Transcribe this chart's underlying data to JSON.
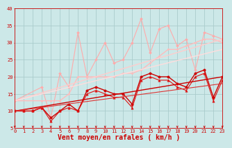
{
  "background_color": "#cce8e8",
  "grid_color": "#aacccc",
  "xlabel": "Vent moyen/en rafales ( km/h )",
  "xlabel_color": "#cc0000",
  "xlabel_fontsize": 7,
  "tick_color": "#cc0000",
  "ylim": [
    5,
    40
  ],
  "xlim": [
    0,
    23
  ],
  "yticks": [
    5,
    10,
    15,
    20,
    25,
    30,
    35,
    40
  ],
  "xticks": [
    0,
    1,
    2,
    3,
    4,
    5,
    6,
    7,
    8,
    9,
    10,
    11,
    12,
    13,
    14,
    15,
    16,
    17,
    18,
    19,
    20,
    21,
    22,
    23
  ],
  "lines": [
    {
      "comment": "light pink jagged line - highest peaks",
      "x": [
        0,
        3,
        4,
        5,
        6,
        7,
        8,
        9,
        10,
        11,
        12,
        13,
        14,
        15,
        16,
        17,
        18,
        19,
        20,
        21,
        22,
        23
      ],
      "y": [
        13,
        17,
        8,
        21,
        17,
        33,
        20,
        25,
        30,
        24,
        25,
        30,
        37,
        27,
        34,
        35,
        29,
        31,
        22,
        33,
        32,
        31
      ],
      "color": "#ffaaaa",
      "lw": 0.8,
      "marker": "D",
      "ms": 2.0,
      "mfc": "#ffaaaa",
      "mec": "#ffaaaa"
    },
    {
      "comment": "medium pink line - upper trend",
      "x": [
        0,
        3,
        4,
        5,
        6,
        7,
        8,
        9,
        10,
        11,
        12,
        13,
        14,
        15,
        16,
        17,
        18,
        19,
        20,
        21,
        22,
        23
      ],
      "y": [
        13,
        13,
        13,
        13,
        15,
        20,
        20,
        20,
        20,
        20,
        21,
        21,
        22,
        24,
        26,
        28,
        28,
        29,
        30,
        31,
        31,
        30
      ],
      "color": "#ffbbbb",
      "lw": 1.0,
      "marker": "D",
      "ms": 1.5,
      "mfc": "#ffbbbb",
      "mec": "#ffbbbb"
    },
    {
      "comment": "light pink straight line - upper regression",
      "x": [
        0,
        23
      ],
      "y": [
        13,
        31
      ],
      "color": "#ffcccc",
      "lw": 1.0,
      "marker": null,
      "ms": 0,
      "mfc": null,
      "mec": null
    },
    {
      "comment": "lighter pink straight line - lower regression",
      "x": [
        0,
        23
      ],
      "y": [
        13,
        28
      ],
      "color": "#ffdddd",
      "lw": 1.0,
      "marker": null,
      "ms": 0,
      "mfc": null,
      "mec": null
    },
    {
      "comment": "dark red jagged main line with filled circles",
      "x": [
        0,
        1,
        2,
        3,
        4,
        5,
        6,
        7,
        8,
        9,
        10,
        11,
        12,
        13,
        14,
        15,
        16,
        17,
        18,
        19,
        20,
        21,
        22,
        23
      ],
      "y": [
        10,
        10,
        10,
        11,
        8,
        10,
        12,
        10,
        16,
        17,
        16,
        15,
        15,
        12,
        20,
        21,
        20,
        20,
        18,
        17,
        21,
        22,
        14,
        20
      ],
      "color": "#cc0000",
      "lw": 1.0,
      "marker": "o",
      "ms": 2.5,
      "mfc": "#cc0000",
      "mec": "#cc0000"
    },
    {
      "comment": "dark red jagged line with triangles",
      "x": [
        0,
        1,
        2,
        3,
        4,
        5,
        6,
        7,
        8,
        9,
        10,
        11,
        12,
        13,
        14,
        15,
        16,
        17,
        18,
        19,
        20,
        21,
        22,
        23
      ],
      "y": [
        10,
        10,
        10,
        11,
        7,
        10,
        11,
        10,
        15,
        16,
        15,
        14,
        14,
        11,
        19,
        20,
        19,
        19,
        17,
        16,
        20,
        21,
        13,
        19
      ],
      "color": "#dd1111",
      "lw": 0.8,
      "marker": "^",
      "ms": 2.5,
      "mfc": "#dd1111",
      "mec": "#dd1111"
    },
    {
      "comment": "dark red straight regression line upper",
      "x": [
        0,
        23
      ],
      "y": [
        10,
        20
      ],
      "color": "#cc0000",
      "lw": 1.0,
      "marker": null,
      "ms": 0,
      "mfc": null,
      "mec": null
    },
    {
      "comment": "dark red straight regression line lower",
      "x": [
        0,
        23
      ],
      "y": [
        10,
        18
      ],
      "color": "#dd3333",
      "lw": 0.8,
      "marker": null,
      "ms": 0,
      "mfc": null,
      "mec": null
    }
  ],
  "arrow_color": "#cc0000",
  "tick_fontsize": 5,
  "tick_fontfamily": "monospace"
}
